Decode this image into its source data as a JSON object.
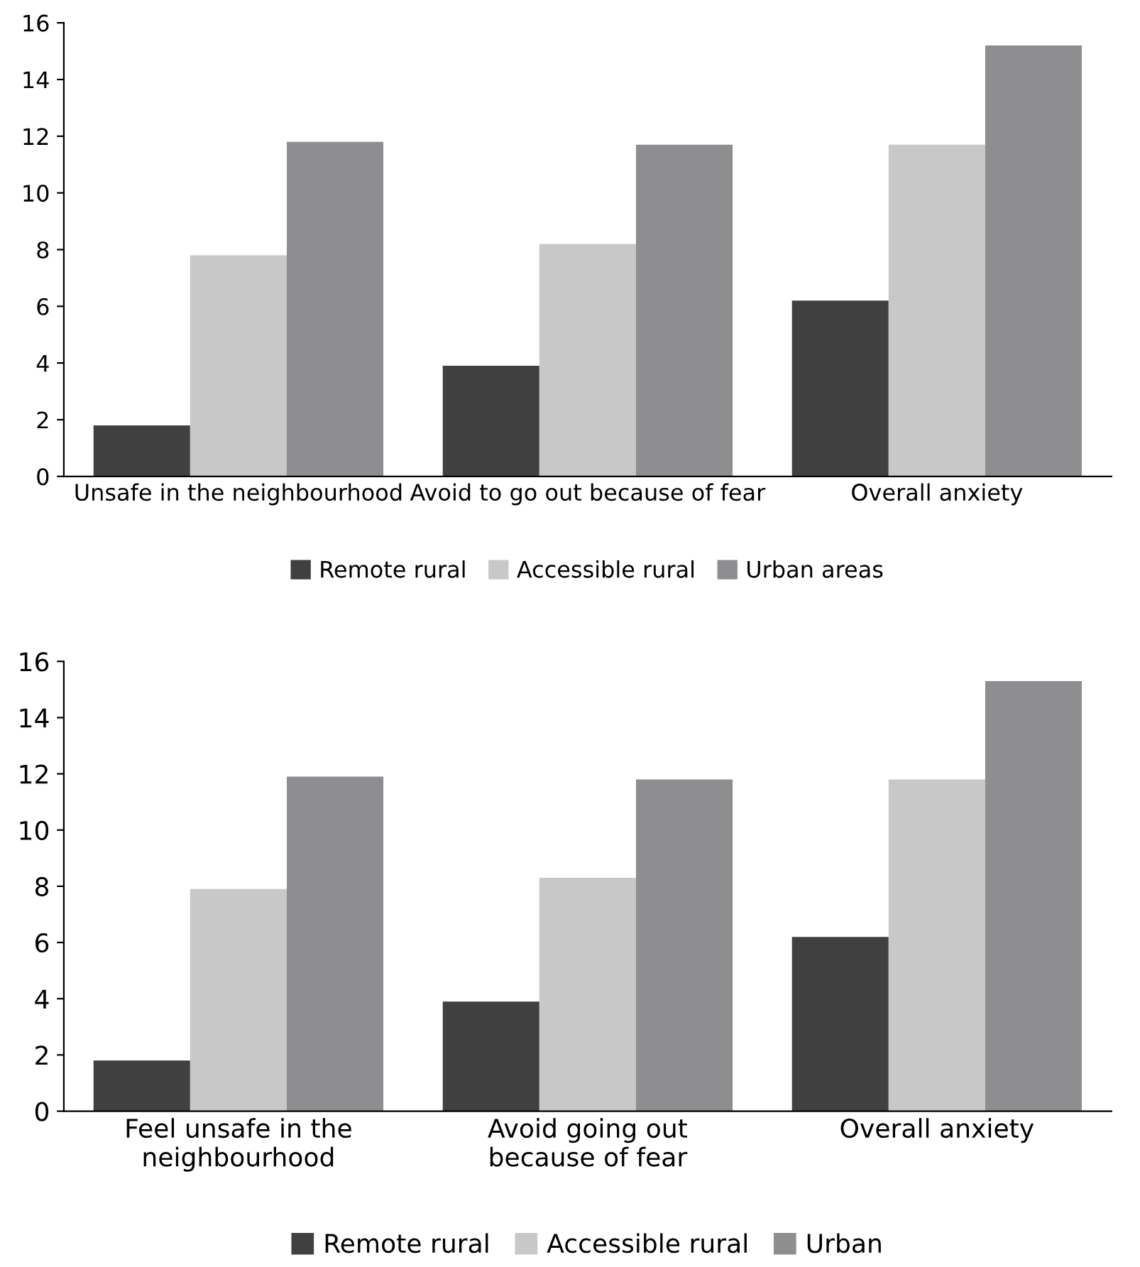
{
  "chart_data": [
    {
      "type": "bar",
      "categories": [
        "Unsafe in the neighbourhood",
        "Avoid to go out because of fear",
        "Overall anxiety"
      ],
      "series": [
        {
          "name": "Remote rural",
          "color": "#404040",
          "values": [
            1.8,
            3.9,
            6.2
          ]
        },
        {
          "name": "Accessible rural",
          "color": "#c8c8c8",
          "values": [
            7.8,
            8.2,
            11.7
          ]
        },
        {
          "name": "Urban areas",
          "color": "#8e8e90",
          "values": [
            11.8,
            11.7,
            15.2
          ]
        }
      ],
      "ylim": [
        0,
        16
      ],
      "yticks": [
        0,
        2,
        4,
        6,
        8,
        10,
        12,
        14,
        16
      ],
      "grid": false,
      "legend": "bottom"
    },
    {
      "type": "bar",
      "categories": [
        "Feel unsafe in the\nneighbourhood",
        "Avoid going out\nbecause of fear",
        "Overall anxiety"
      ],
      "series": [
        {
          "name": "Remote rural",
          "color": "#404040",
          "values": [
            1.8,
            3.9,
            6.2
          ]
        },
        {
          "name": "Accessible rural",
          "color": "#c8c8c8",
          "values": [
            7.9,
            8.3,
            11.8
          ]
        },
        {
          "name": "Urban",
          "color": "#8e8e90",
          "values": [
            11.9,
            11.8,
            15.3
          ]
        }
      ],
      "ylim": [
        0,
        16
      ],
      "yticks": [
        0,
        2,
        4,
        6,
        8,
        10,
        12,
        14,
        16
      ],
      "grid": false,
      "legend": "bottom"
    }
  ]
}
